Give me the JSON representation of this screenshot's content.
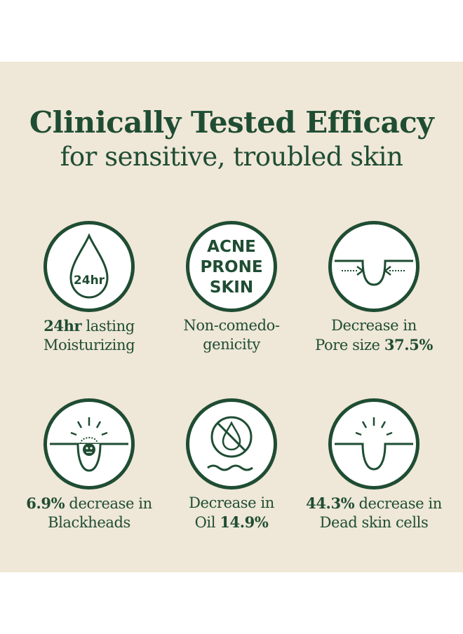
{
  "header": {
    "title": "Clinically Tested Efficacy",
    "subtitle": "for sensitive, troubled skin"
  },
  "colors": {
    "primary": "#1f4d33",
    "background": "#efe7d7",
    "circle_fill": "#ffffff"
  },
  "items": [
    {
      "icon": "water-drop-24hr-icon",
      "icon_text": "24hr",
      "caption_bold": "24hr",
      "caption_rest": " lasting",
      "caption_line2": "Moisturizing"
    },
    {
      "icon": "acne-prone-skin-icon",
      "icon_lines": [
        "ACNE",
        "PRONE",
        "SKIN"
      ],
      "caption_line1": "Non-comedo-",
      "caption_line2": "genicity"
    },
    {
      "icon": "pore-shrink-icon",
      "caption_line1": "Decrease in",
      "caption_plain": "Pore size ",
      "caption_bold": "37.5%"
    },
    {
      "icon": "blackhead-icon",
      "caption_bold": "6.9%",
      "caption_rest": " decrease in",
      "caption_line2": "Blackheads"
    },
    {
      "icon": "no-oil-icon",
      "caption_line1": "Decrease in",
      "caption_plain": "Oil ",
      "caption_bold": "14.9%"
    },
    {
      "icon": "dead-skin-icon",
      "caption_bold": "44.3%",
      "caption_rest": " decrease in",
      "caption_line2": "Dead skin cells"
    }
  ]
}
